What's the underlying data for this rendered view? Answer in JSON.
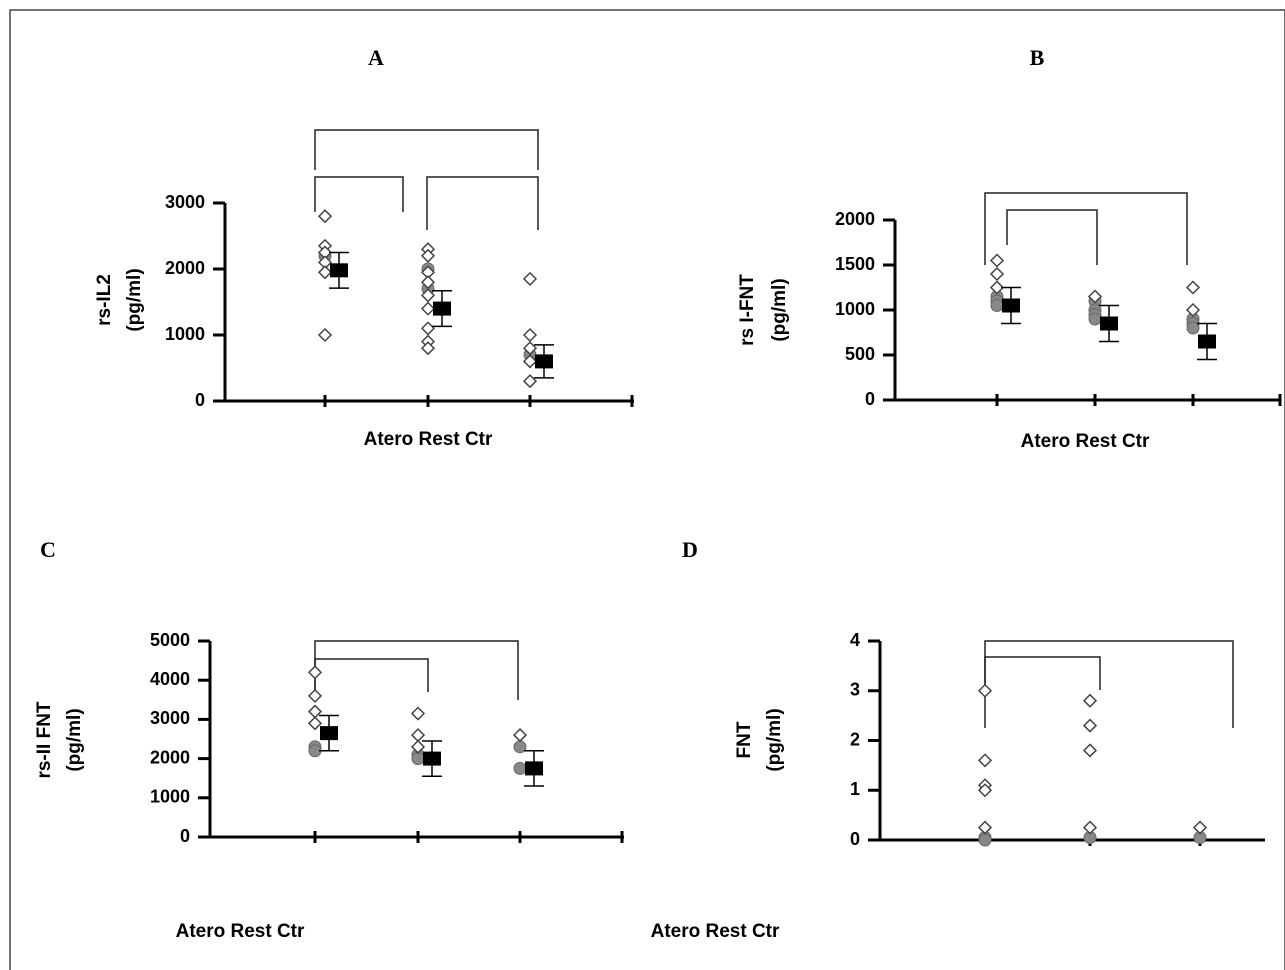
{
  "chart_data": [
    {
      "type": "dot",
      "title": "A",
      "ylabel": [
        "rs-IL2",
        "(pg/ml)"
      ],
      "xlabel": "Atero Rest Ctr",
      "ylim": [
        0,
        3000
      ],
      "yticks": [
        0,
        1000,
        2000,
        3000
      ],
      "groups": [
        {
          "open": [
            2800,
            2350,
            2250,
            2100,
            1950,
            1000
          ],
          "filled": [
            2200
          ],
          "mean": 1980,
          "error": 270
        },
        {
          "open": [
            2300,
            2200,
            1950,
            1800,
            1600,
            1400,
            1100,
            900,
            800
          ],
          "filled": [
            2000,
            1700
          ],
          "mean": 1400,
          "error": 270
        },
        {
          "open": [
            1850,
            1000,
            800,
            600,
            300
          ],
          "filled": [
            700
          ],
          "mean": 600,
          "error": 250
        }
      ]
    },
    {
      "type": "dot",
      "title": "B",
      "ylabel": [
        "rs I-FNT",
        "(pg/ml)"
      ],
      "xlabel": "Atero Rest Ctr",
      "ylim": [
        0,
        2000
      ],
      "yticks": [
        0,
        500,
        1000,
        1500,
        2000
      ],
      "groups": [
        {
          "open": [
            1550,
            1400,
            1250
          ],
          "filled": [
            1150,
            1100,
            1050
          ],
          "mean": 1050,
          "error": 200
        },
        {
          "open": [
            1150
          ],
          "filled": [
            1100,
            1000,
            950,
            900
          ],
          "mean": 850,
          "error": 200
        },
        {
          "open": [
            1250,
            1000
          ],
          "filled": [
            900,
            850,
            800
          ],
          "mean": 650,
          "error": 200
        }
      ]
    },
    {
      "type": "dot",
      "title": "C",
      "ylabel": [
        "rs-II FNT",
        "(pg/ml)"
      ],
      "xlabel": "Atero Rest Ctr",
      "ylim": [
        0,
        5000
      ],
      "yticks": [
        0,
        1000,
        2000,
        3000,
        4000,
        5000
      ],
      "groups": [
        {
          "open": [
            4200,
            3600,
            3200,
            2900
          ],
          "filled": [
            2300,
            2200
          ],
          "mean": 2650,
          "error": 450
        },
        {
          "open": [
            3150,
            2600,
            2300
          ],
          "filled": [
            2100,
            2000
          ],
          "mean": 2000,
          "error": 450
        },
        {
          "open": [
            2600
          ],
          "filled": [
            2300,
            1750
          ],
          "mean": 1750,
          "error": 450
        }
      ]
    },
    {
      "type": "dot",
      "title": "D",
      "ylabel": [
        "FNT",
        "(pg/ml)"
      ],
      "xlabel": "Atero Rest Ctr",
      "ylim": [
        0,
        4
      ],
      "yticks": [
        0,
        1,
        2,
        3,
        4
      ],
      "groups": [
        {
          "open": [
            3,
            1.6,
            1.1,
            1.0,
            0.25
          ],
          "filled": [
            0.05,
            0
          ]
        },
        {
          "open": [
            2.8,
            2.3,
            1.8,
            0.25
          ],
          "filled": [
            0.05
          ]
        },
        {
          "open": [
            0.25
          ],
          "filled": [
            0.05
          ]
        }
      ]
    }
  ]
}
